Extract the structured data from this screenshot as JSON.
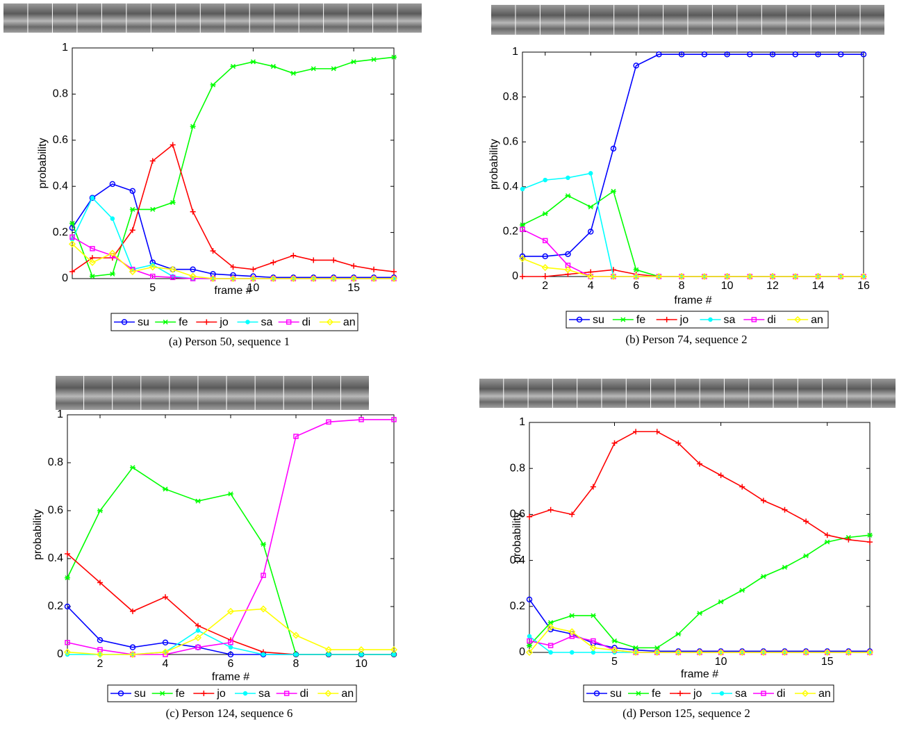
{
  "chart_data": [
    {
      "type": "line",
      "caption": "(a) Person 50, sequence 1",
      "xlabel": "frame #",
      "ylabel": "probability",
      "x": [
        1,
        2,
        3,
        4,
        5,
        6,
        7,
        8,
        9,
        10,
        11,
        12,
        13,
        14,
        15,
        16,
        17
      ],
      "xlim": [
        1,
        17
      ],
      "xticks": [
        5,
        10,
        15
      ],
      "ylim": [
        0,
        1
      ],
      "yticks": [
        0,
        0.2,
        0.4,
        0.6,
        0.8,
        1
      ],
      "series": [
        {
          "name": "su",
          "color": "#0000ff",
          "marker": "circle",
          "values": [
            0.22,
            0.35,
            0.41,
            0.38,
            0.07,
            0.04,
            0.04,
            0.02,
            0.015,
            0.01,
            0.005,
            0.005,
            0.005,
            0.005,
            0.005,
            0.005,
            0.005
          ]
        },
        {
          "name": "fe",
          "color": "#00ff00",
          "marker": "star",
          "values": [
            0.24,
            0.01,
            0.02,
            0.3,
            0.3,
            0.33,
            0.66,
            0.84,
            0.92,
            0.94,
            0.92,
            0.89,
            0.91,
            0.91,
            0.94,
            0.95,
            0.96
          ]
        },
        {
          "name": "jo",
          "color": "#ff0000",
          "marker": "plus",
          "values": [
            0.03,
            0.09,
            0.09,
            0.21,
            0.51,
            0.58,
            0.29,
            0.12,
            0.05,
            0.04,
            0.07,
            0.1,
            0.08,
            0.08,
            0.055,
            0.04,
            0.03
          ]
        },
        {
          "name": "sa",
          "color": "#00ffff",
          "marker": "dot",
          "values": [
            0.17,
            0.35,
            0.26,
            0.04,
            0.06,
            0.01,
            0,
            0,
            0,
            0,
            0,
            0,
            0,
            0,
            0,
            0,
            0
          ]
        },
        {
          "name": "di",
          "color": "#ff00ff",
          "marker": "square",
          "values": [
            0.18,
            0.13,
            0.1,
            0.04,
            0.01,
            0.005,
            0,
            0,
            0,
            0,
            0,
            0,
            0,
            0,
            0,
            0,
            0
          ]
        },
        {
          "name": "an",
          "color": "#ffff00",
          "marker": "diamond",
          "values": [
            0.15,
            0.07,
            0.11,
            0.03,
            0.05,
            0.04,
            0.01,
            0,
            0,
            0,
            0,
            0,
            0,
            0,
            0,
            0,
            0
          ]
        }
      ]
    },
    {
      "type": "line",
      "caption": "(b) Person 74, sequence 2",
      "xlabel": "frame #",
      "ylabel": "probability",
      "x": [
        1,
        2,
        3,
        4,
        5,
        6,
        7,
        8,
        9,
        10,
        11,
        12,
        13,
        14,
        15,
        16
      ],
      "xlim": [
        1,
        16
      ],
      "xticks": [
        2,
        4,
        6,
        8,
        10,
        12,
        14,
        16
      ],
      "ylim": [
        0,
        1
      ],
      "yticks": [
        0,
        0.2,
        0.4,
        0.6,
        0.8,
        1
      ],
      "series": [
        {
          "name": "su",
          "color": "#0000ff",
          "marker": "circle",
          "values": [
            0.09,
            0.09,
            0.1,
            0.2,
            0.57,
            0.94,
            0.99,
            0.99,
            0.99,
            0.99,
            0.99,
            0.99,
            0.99,
            0.99,
            0.99,
            0.99
          ]
        },
        {
          "name": "fe",
          "color": "#00ff00",
          "marker": "star",
          "values": [
            0.23,
            0.28,
            0.36,
            0.31,
            0.38,
            0.03,
            0,
            0,
            0,
            0,
            0,
            0,
            0,
            0,
            0,
            0
          ]
        },
        {
          "name": "jo",
          "color": "#ff0000",
          "marker": "plus",
          "values": [
            0,
            0,
            0.01,
            0.02,
            0.03,
            0.01,
            0,
            0,
            0,
            0,
            0,
            0,
            0,
            0,
            0,
            0
          ]
        },
        {
          "name": "sa",
          "color": "#00ffff",
          "marker": "dot",
          "values": [
            0.39,
            0.43,
            0.44,
            0.46,
            0,
            0,
            0,
            0,
            0,
            0,
            0,
            0,
            0,
            0,
            0,
            0
          ]
        },
        {
          "name": "di",
          "color": "#ff00ff",
          "marker": "square",
          "values": [
            0.21,
            0.16,
            0.05,
            0,
            0,
            0,
            0,
            0,
            0,
            0,
            0,
            0,
            0,
            0,
            0,
            0
          ]
        },
        {
          "name": "an",
          "color": "#ffff00",
          "marker": "diamond",
          "values": [
            0.08,
            0.04,
            0.03,
            0,
            0,
            0,
            0,
            0,
            0,
            0,
            0,
            0,
            0,
            0,
            0,
            0
          ]
        }
      ]
    },
    {
      "type": "line",
      "caption": "(c) Person 124, sequence 6",
      "xlabel": "frame #",
      "ylabel": "probability",
      "x": [
        1,
        2,
        3,
        4,
        5,
        6,
        7,
        8,
        9,
        10,
        11
      ],
      "xlim": [
        1,
        11
      ],
      "xticks": [
        2,
        4,
        6,
        8,
        10
      ],
      "ylim": [
        0,
        1
      ],
      "yticks": [
        0,
        0.2,
        0.4,
        0.6,
        0.8,
        1
      ],
      "series": [
        {
          "name": "su",
          "color": "#0000ff",
          "marker": "circle",
          "values": [
            0.2,
            0.06,
            0.03,
            0.05,
            0.03,
            0,
            0,
            0,
            0,
            0,
            0
          ]
        },
        {
          "name": "fe",
          "color": "#00ff00",
          "marker": "star",
          "values": [
            0.32,
            0.6,
            0.78,
            0.69,
            0.64,
            0.67,
            0.46,
            0,
            0,
            0,
            0
          ]
        },
        {
          "name": "jo",
          "color": "#ff0000",
          "marker": "plus",
          "values": [
            0.42,
            0.3,
            0.18,
            0.24,
            0.12,
            0.06,
            0.01,
            0,
            0,
            0,
            0
          ]
        },
        {
          "name": "sa",
          "color": "#00ffff",
          "marker": "dot",
          "values": [
            0,
            0,
            0,
            0.01,
            0.1,
            0.03,
            0,
            0,
            0,
            0,
            0
          ]
        },
        {
          "name": "di",
          "color": "#ff00ff",
          "marker": "square",
          "values": [
            0.05,
            0.02,
            0,
            0,
            0.03,
            0.05,
            0.33,
            0.91,
            0.97,
            0.98,
            0.98
          ]
        },
        {
          "name": "an",
          "color": "#ffff00",
          "marker": "diamond",
          "values": [
            0.01,
            0,
            0,
            0.01,
            0.07,
            0.18,
            0.19,
            0.08,
            0.02,
            0.02,
            0.02
          ]
        }
      ]
    },
    {
      "type": "line",
      "caption": "(d) Person 125, sequence 2",
      "xlabel": "frame #",
      "ylabel": "probability",
      "x": [
        1,
        2,
        3,
        4,
        5,
        6,
        7,
        8,
        9,
        10,
        11,
        12,
        13,
        14,
        15,
        16,
        17
      ],
      "xlim": [
        1,
        17
      ],
      "xticks": [
        5,
        10,
        15
      ],
      "ylim": [
        0,
        1
      ],
      "yticks": [
        0,
        0.2,
        0.4,
        0.6,
        0.8,
        1
      ],
      "series": [
        {
          "name": "su",
          "color": "#0000ff",
          "marker": "circle",
          "values": [
            0.23,
            0.1,
            0.08,
            0.04,
            0.02,
            0.01,
            0.005,
            0.005,
            0.005,
            0.005,
            0.005,
            0.005,
            0.005,
            0.005,
            0.005,
            0.005,
            0.005
          ]
        },
        {
          "name": "fe",
          "color": "#00ff00",
          "marker": "star",
          "values": [
            0.03,
            0.13,
            0.16,
            0.16,
            0.05,
            0.02,
            0.02,
            0.08,
            0.17,
            0.22,
            0.27,
            0.33,
            0.37,
            0.42,
            0.48,
            0.5,
            0.51
          ]
        },
        {
          "name": "jo",
          "color": "#ff0000",
          "marker": "plus",
          "values": [
            0.59,
            0.62,
            0.6,
            0.72,
            0.91,
            0.96,
            0.96,
            0.91,
            0.82,
            0.77,
            0.72,
            0.66,
            0.62,
            0.57,
            0.51,
            0.49,
            0.48
          ]
        },
        {
          "name": "sa",
          "color": "#00ffff",
          "marker": "dot",
          "values": [
            0.07,
            0,
            0,
            0,
            0,
            0,
            0,
            0,
            0,
            0,
            0,
            0,
            0,
            0,
            0,
            0,
            0
          ]
        },
        {
          "name": "di",
          "color": "#ff00ff",
          "marker": "square",
          "values": [
            0.05,
            0.03,
            0.07,
            0.05,
            0.01,
            0,
            0,
            0,
            0,
            0,
            0,
            0,
            0,
            0,
            0,
            0,
            0
          ]
        },
        {
          "name": "an",
          "color": "#ffff00",
          "marker": "diamond",
          "values": [
            0,
            0.11,
            0.09,
            0.02,
            0.01,
            0,
            0,
            0,
            0,
            0,
            0,
            0,
            0,
            0,
            0,
            0,
            0
          ]
        }
      ]
    }
  ]
}
